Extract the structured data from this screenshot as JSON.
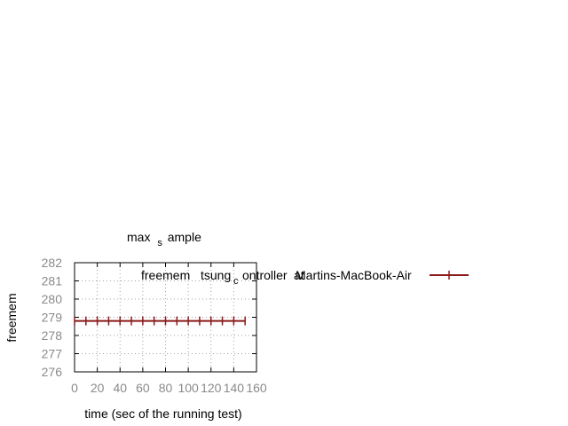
{
  "chart_data": {
    "type": "line",
    "title": {
      "main": "max",
      "sub": "s",
      "rest": "ample"
    },
    "xlabel": "time (sec of the running test)",
    "ylabel": "freemem",
    "xlim": [
      0,
      160
    ],
    "ylim": [
      276,
      282
    ],
    "xticks": [
      0,
      20,
      40,
      60,
      80,
      100,
      120,
      140,
      160
    ],
    "yticks": [
      276,
      277,
      278,
      279,
      280,
      281,
      282
    ],
    "grid": true,
    "legend_position": "top-right",
    "series": [
      {
        "name": "freemem tsung_controller@Martins-MacBook-Air",
        "legend_parts": {
          "a": "freemem",
          "b": "tsung",
          "c": "c",
          "d": "ontroller",
          "e": "at",
          "f": "Martins-MacBook-Air"
        },
        "color": "#8b1a1a",
        "x": [
          0,
          10,
          20,
          30,
          40,
          50,
          60,
          70,
          80,
          90,
          100,
          110,
          120,
          130,
          140,
          150
        ],
        "y": [
          278.8,
          278.8,
          278.8,
          278.8,
          278.8,
          278.8,
          278.8,
          278.8,
          278.8,
          278.8,
          278.8,
          278.8,
          278.8,
          278.8,
          278.8,
          278.8
        ]
      }
    ]
  }
}
